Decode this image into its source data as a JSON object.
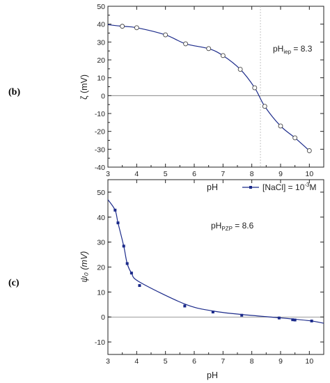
{
  "chart_data": [
    {
      "panel_label": "(b)",
      "type": "line",
      "xlabel": "pH",
      "ylabel": "ζ (mV)",
      "xlim": [
        3,
        10.5
      ],
      "ylim": [
        -40,
        50
      ],
      "xticks": [
        "3",
        "4",
        "5",
        "6",
        "7",
        "8",
        "9",
        "10"
      ],
      "yticks": [
        "-40",
        "-30",
        "-20",
        "-10",
        "0",
        "10",
        "20",
        "30",
        "40",
        "50"
      ],
      "annotation": {
        "base": "pH",
        "sub": "iep",
        "rest": " = 8.3"
      },
      "reference_vline_x": 8.3,
      "zero_line": true,
      "series": [
        {
          "marker": "open-circle",
          "x": [
            3.5,
            4.0,
            5.0,
            5.7,
            6.5,
            7.0,
            7.6,
            8.1,
            8.45,
            9.0,
            9.5,
            10.0
          ],
          "y": [
            38.8,
            38.0,
            34.0,
            29.0,
            26.3,
            22.4,
            14.7,
            4.4,
            -6.0,
            -17.0,
            -23.6,
            -30.8
          ]
        }
      ],
      "curve": {
        "color": "#1b2a8a",
        "x": [
          3.0,
          3.5,
          4.0,
          5.0,
          5.7,
          6.5,
          7.0,
          7.6,
          8.1,
          8.45,
          9.0,
          9.5,
          10.0
        ],
        "y": [
          39.7,
          38.8,
          38.0,
          34.0,
          29.0,
          26.3,
          22.4,
          14.7,
          4.4,
          -6.0,
          -17.0,
          -23.6,
          -30.8
        ]
      }
    },
    {
      "panel_label": "(c)",
      "type": "line",
      "xlabel": "pH",
      "ylabel": "ψ₀ (mV)",
      "xlim": [
        3,
        10.5
      ],
      "ylim": [
        -15,
        55
      ],
      "xticks": [
        "3",
        "4",
        "5",
        "6",
        "7",
        "8",
        "9",
        "10"
      ],
      "yticks": [
        "-10",
        "0",
        "10",
        "20",
        "30",
        "40",
        "50"
      ],
      "annotation": {
        "base": "pH",
        "sub": "PZP",
        "rest": " = 8.6"
      },
      "legend": {
        "base": "[NaCl] = 10",
        "sup": "-3",
        "rest": "M",
        "position": "top-right"
      },
      "zero_line": true,
      "series": [
        {
          "marker": "filled-square",
          "x": [
            3.25,
            3.35,
            3.55,
            3.67,
            3.82,
            4.1,
            5.67,
            6.65,
            7.65,
            8.95,
            9.42,
            9.5,
            10.08
          ],
          "y": [
            42.8,
            37.7,
            28.4,
            21.4,
            17.6,
            12.6,
            4.4,
            2.0,
            0.7,
            -0.4,
            -1.1,
            -1.2,
            -1.6
          ]
        }
      ],
      "curve": {
        "color": "#1b2a8a",
        "x": [
          3.0,
          3.25,
          3.35,
          3.55,
          3.67,
          3.82,
          4.1,
          5.67,
          6.65,
          7.65,
          8.95,
          9.5,
          10.08,
          10.5
        ],
        "y": [
          47.0,
          42.8,
          37.7,
          28.4,
          21.4,
          17.6,
          14.0,
          5.2,
          2.4,
          1.0,
          -0.3,
          -0.9,
          -1.6,
          -2.5
        ]
      }
    }
  ]
}
